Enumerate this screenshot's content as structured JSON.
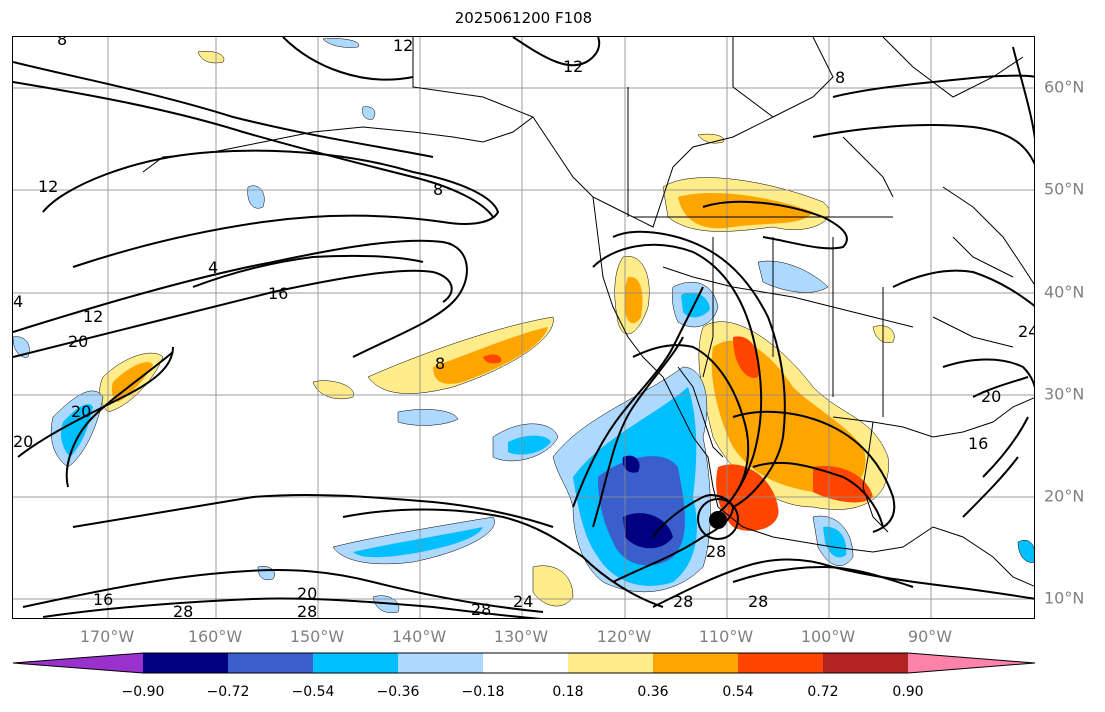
{
  "title": "2025061200 F108",
  "lon_labels": [
    "170°W",
    "160°W",
    "150°W",
    "140°W",
    "130°W",
    "120°W",
    "110°W",
    "100°W",
    "90°W"
  ],
  "lat_labels": [
    "60°N",
    "50°N",
    "40°N",
    "30°N",
    "20°N",
    "10°N"
  ],
  "colorbar": {
    "ticks": [
      "−0.90",
      "−0.72",
      "−0.54",
      "−0.36",
      "−0.18",
      "0.18",
      "0.36",
      "0.54",
      "0.72",
      "0.90"
    ],
    "colors": [
      "#9932cc",
      "#000080",
      "#3a5fcd",
      "#00bfff",
      "#add8ff",
      "#ffffff",
      "#ffec8b",
      "#ffa500",
      "#ff4500",
      "#b22222",
      "#ff82ab"
    ]
  },
  "contour_labels": [
    "8",
    "12",
    "16",
    "20",
    "24",
    "28",
    "4"
  ],
  "colors": {
    "contour": "#000000",
    "coast": "#000000",
    "grid": "#8c8c8c",
    "axis_label": "#808080"
  }
}
